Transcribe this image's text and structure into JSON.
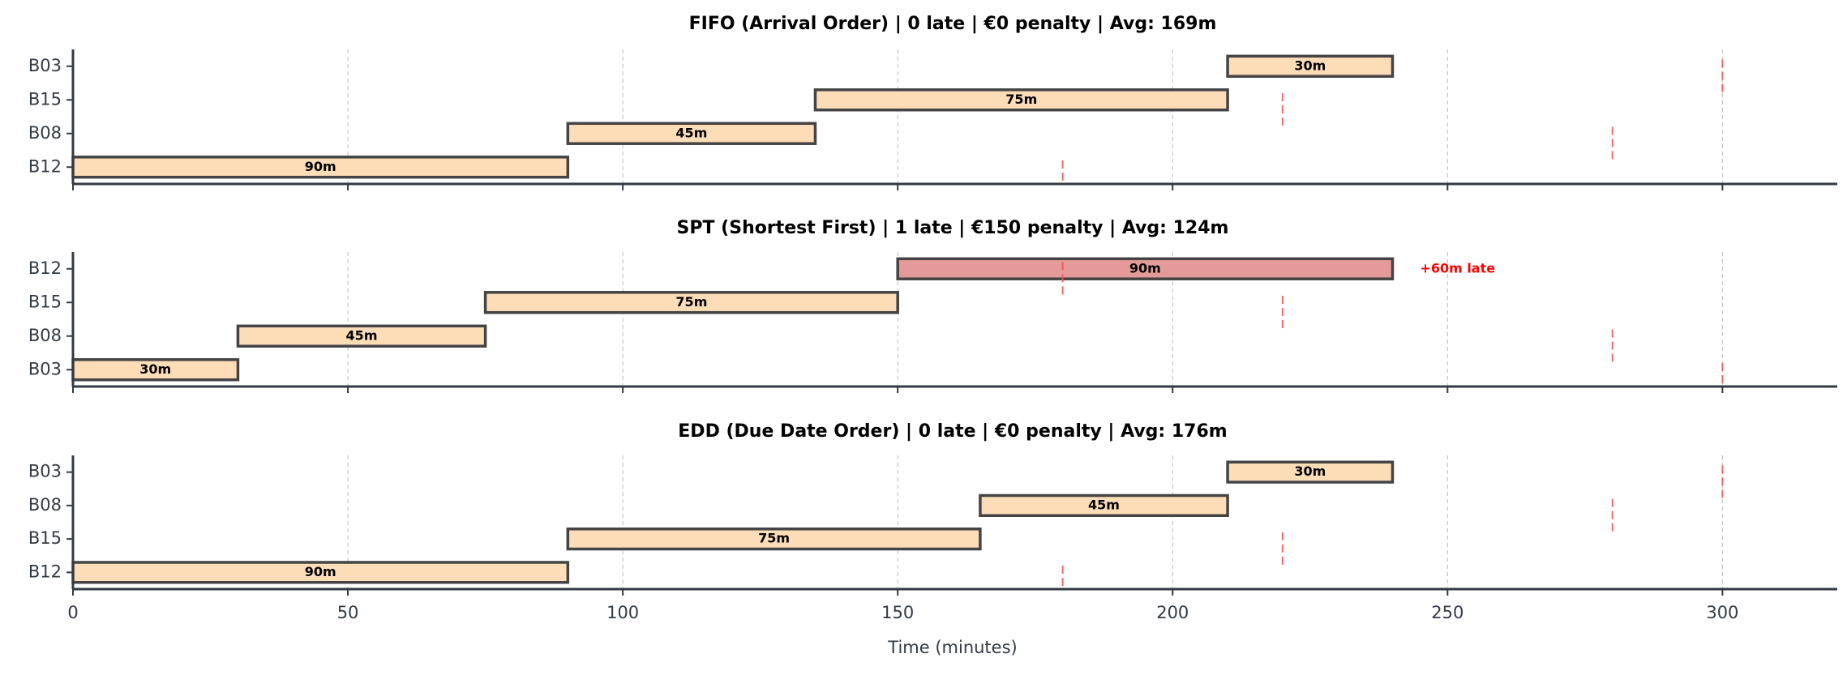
{
  "chart_data": [
    {
      "type": "gantt",
      "title": "FIFO (Arrival Order)  |  0 late  |  €0 penalty  |  Avg: 169m",
      "rows": [
        "B12",
        "B08",
        "B15",
        "B03"
      ],
      "tasks": [
        {
          "job": "B12",
          "start": 0,
          "duration": 90,
          "label": "90m",
          "late": false
        },
        {
          "job": "B08",
          "start": 90,
          "duration": 45,
          "label": "45m",
          "late": false
        },
        {
          "job": "B15",
          "start": 135,
          "duration": 75,
          "label": "75m",
          "late": false
        },
        {
          "job": "B03",
          "start": 210,
          "duration": 30,
          "label": "30m",
          "late": false
        }
      ],
      "annotations": []
    },
    {
      "type": "gantt",
      "title": "SPT (Shortest First)  |  1 late  |  €150 penalty  |  Avg: 124m",
      "rows": [
        "B03",
        "B08",
        "B15",
        "B12"
      ],
      "tasks": [
        {
          "job": "B03",
          "start": 0,
          "duration": 30,
          "label": "30m",
          "late": false
        },
        {
          "job": "B08",
          "start": 30,
          "duration": 45,
          "label": "45m",
          "late": false
        },
        {
          "job": "B15",
          "start": 75,
          "duration": 75,
          "label": "75m",
          "late": false
        },
        {
          "job": "B12",
          "start": 150,
          "duration": 90,
          "label": "90m",
          "late": true
        }
      ],
      "annotations": [
        {
          "job": "B12",
          "x": 245,
          "text": "+60m late"
        }
      ]
    },
    {
      "type": "gantt",
      "title": "EDD (Due Date Order)  |  0 late  |  €0 penalty  |  Avg: 176m",
      "rows": [
        "B12",
        "B15",
        "B08",
        "B03"
      ],
      "tasks": [
        {
          "job": "B12",
          "start": 0,
          "duration": 90,
          "label": "90m",
          "late": false
        },
        {
          "job": "B15",
          "start": 90,
          "duration": 75,
          "label": "75m",
          "late": false
        },
        {
          "job": "B08",
          "start": 165,
          "duration": 45,
          "label": "45m",
          "late": false
        },
        {
          "job": "B03",
          "start": 210,
          "duration": 30,
          "label": "30m",
          "late": false
        }
      ],
      "annotations": []
    }
  ],
  "due_dates": {
    "B12": 180,
    "B15": 220,
    "B08": 280,
    "B03": 300
  },
  "xaxis": {
    "label": "Time (minutes)",
    "ticks": [
      0,
      50,
      100,
      150,
      200,
      250,
      300
    ],
    "xlim": [
      0,
      320
    ],
    "grid": true
  },
  "colors": {
    "on_time": "#fddcb8",
    "late": "#e59a9a",
    "edge": "#444444",
    "due": "#ff4d4d",
    "axis": "#333a44"
  }
}
